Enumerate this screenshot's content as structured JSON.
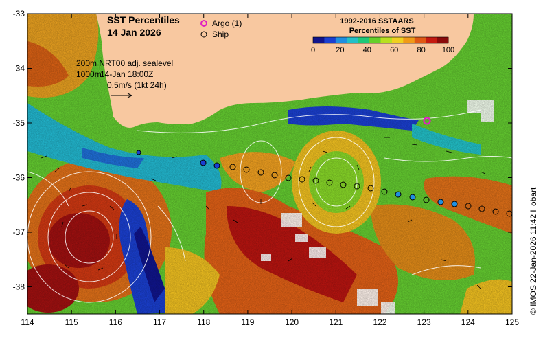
{
  "title": {
    "line1": "SST Percentiles",
    "line2": "14 Jan 2026"
  },
  "legend": {
    "argo_label": "Argo (1)",
    "ship_label": "Ship",
    "argo_color": "#e020c0",
    "ship_color": "#000000"
  },
  "notes": {
    "line1": "200m  NRT00 adj. sealevel",
    "line2_depth": "1000m",
    "line2_time": "14-Jan 18:00Z",
    "line3": "0.5m/s (1kt 24h)"
  },
  "colorbar": {
    "title1": "1992-2016 SSTAARS",
    "title2": "Percentiles of SST",
    "ticks": [
      "0",
      "20",
      "40",
      "60",
      "80",
      "100"
    ],
    "colors": [
      "#10148c",
      "#1a3fd0",
      "#1f8fe0",
      "#22c0c8",
      "#1ec878",
      "#66d02a",
      "#b8e020",
      "#f0d020",
      "#f09a18",
      "#e05814",
      "#c41a10",
      "#8a0a0a"
    ]
  },
  "axes": {
    "x_ticks": [
      "114",
      "115",
      "116",
      "117",
      "118",
      "119",
      "120",
      "121",
      "122",
      "123",
      "124",
      "125"
    ],
    "y_ticks": [
      "-33",
      "-34",
      "-35",
      "-36",
      "-37",
      "-38"
    ]
  },
  "credit": "© IMOS 22-Jan-2026 11:42 Hobart",
  "colors": {
    "land": "#f8c8a0",
    "background": "#ffffff"
  }
}
